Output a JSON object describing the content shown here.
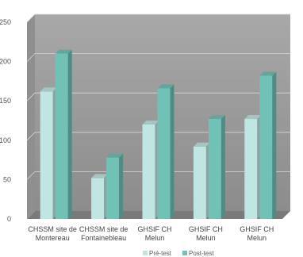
{
  "chart_data": {
    "type": "bar",
    "categories": [
      "CHSSM site de Montereau",
      "CHSSM site de Fontainebleau",
      "GHSIF CH Melun",
      "GHSIF CH Melun",
      "GHSIF CH Melun"
    ],
    "category_lines": [
      [
        "CHSSM site de",
        "Montereau"
      ],
      [
        "CHSSM site de",
        "Fontainebleau"
      ],
      [
        "GHSIF CH",
        "Melun"
      ],
      [
        "GHSIF CH",
        "Melun"
      ],
      [
        "GHSIF CH",
        "Melun"
      ]
    ],
    "series": [
      {
        "name": "Pré-test",
        "values": [
          162,
          52,
          120,
          92,
          127
        ],
        "color": "#bfe6e2"
      },
      {
        "name": "Post-test",
        "values": [
          210,
          78,
          166,
          127,
          182
        ],
        "color": "#72c1b6"
      }
    ],
    "yticks": [
      0,
      50,
      100,
      150,
      200,
      250
    ],
    "ylim": [
      0,
      250
    ],
    "grid": true,
    "legend": "bottom-center",
    "wall_color": "#8f8f8f",
    "floor_color": "#7a7a7a"
  }
}
